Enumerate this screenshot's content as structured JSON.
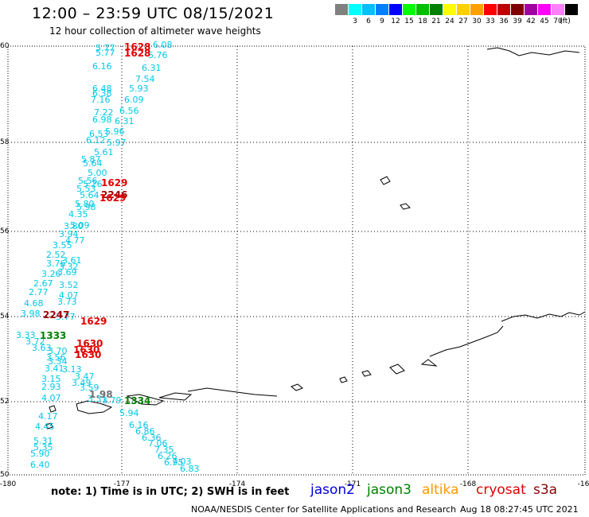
{
  "header": {
    "title": "12:00 – 23:59 UTC 08/15/2021",
    "subtitle": "12 hour collection of altimeter wave heights"
  },
  "legend": {
    "unit_label": "(ft)",
    "items": [
      {
        "color": "#808080",
        "label": ""
      },
      {
        "color": "#00ffff",
        "label": "3"
      },
      {
        "color": "#00c0ff",
        "label": "6"
      },
      {
        "color": "#0080ff",
        "label": "9"
      },
      {
        "color": "#0000ff",
        "label": "12"
      },
      {
        "color": "#00ff00",
        "label": "15"
      },
      {
        "color": "#00c000",
        "label": "18"
      },
      {
        "color": "#008000",
        "label": "21"
      },
      {
        "color": "#ffff00",
        "label": "24"
      },
      {
        "color": "#ffd000",
        "label": "27"
      },
      {
        "color": "#ffa000",
        "label": "30"
      },
      {
        "color": "#ff0000",
        "label": "33"
      },
      {
        "color": "#c00000",
        "label": "36"
      },
      {
        "color": "#800000",
        "label": "39"
      },
      {
        "color": "#a000a0",
        "label": "42"
      },
      {
        "color": "#ff00ff",
        "label": "45"
      },
      {
        "color": "#ff80ff",
        "label": "70"
      },
      {
        "color": "#000000",
        "label": ""
      }
    ]
  },
  "map": {
    "lat_labels": [
      "60",
      "58",
      "56",
      "54",
      "52",
      "50"
    ],
    "lon_labels": [
      "-180",
      "-177",
      "-174",
      "-171",
      "-168",
      "-16"
    ],
    "colors": {
      "cyan": "#00c8e6",
      "red": "#e00000",
      "darkred": "#a00000",
      "green": "#008000",
      "gray": "#707070",
      "black": "#000000"
    },
    "tracks": [
      {
        "color": "#00c8e6",
        "values": [
          "5.77",
          "5.77",
          "6.16",
          "6.48",
          "6.38",
          "7.16",
          "7.22",
          "6.98",
          "6.53",
          "6.12",
          "5.61",
          "5.87",
          "5.64",
          "5.00",
          "5.56",
          "5.26",
          "5.53",
          "5.64",
          "5.80",
          "5.98",
          "4.35",
          "3.80",
          "3.94",
          "3.55",
          "3.76",
          "3.26",
          "2.52",
          "2.67",
          "2.77",
          "4.68",
          "3.98"
        ]
      },
      {
        "color": "#00c8e6",
        "values": [
          "6.08",
          "5.76",
          "6.31",
          "7.54",
          "5.93",
          "6.09",
          "6.56",
          "6.31",
          "5.96",
          "5.97",
          "5.09",
          "4.77",
          "3.61",
          "3.32",
          "3.69",
          "3.52",
          "4.07",
          "3.73"
        ]
      },
      {
        "color": "#00c8e6",
        "values": [
          "3.33",
          "3.72",
          "3.63",
          "3.70",
          "3.56",
          "3.34",
          "3.41",
          "3.15",
          "2.93",
          "3.47",
          "3.49",
          "3.13",
          "3.59",
          "3.79",
          "3.31",
          "4.07"
        ]
      },
      {
        "color": "#00c8e6",
        "values": [
          "4.17",
          "4.45",
          "5.31",
          "5.35",
          "5.90",
          "6.40"
        ]
      },
      {
        "color": "#00c8e6",
        "values": [
          "5.94",
          "6.16",
          "6.86",
          "6.36",
          "7.06",
          "7.35",
          "6.26",
          "6.95",
          "7.03",
          "6.83"
        ]
      },
      {
        "color": "#00c8e6",
        "values": [
          "3.77"
        ]
      }
    ],
    "time_labels": [
      {
        "text": "1628",
        "color": "#e00000"
      },
      {
        "text": "1628",
        "color": "#e00000"
      },
      {
        "text": "1629",
        "color": "#e00000"
      },
      {
        "text": "2246",
        "color": "#a00000"
      },
      {
        "text": "1629",
        "color": "#e00000"
      },
      {
        "text": "2247",
        "color": "#a00000"
      },
      {
        "text": "1629",
        "color": "#e00000"
      },
      {
        "text": "1333",
        "color": "#008000"
      },
      {
        "text": "1630",
        "color": "#e00000"
      },
      {
        "text": "1630",
        "color": "#e00000"
      },
      {
        "text": "1630",
        "color": "#e00000"
      },
      {
        "text": "1334",
        "color": "#008000"
      },
      {
        "text": "1.98",
        "color": "#707070"
      }
    ]
  },
  "footer": {
    "note": "note: 1) Time is in UTC; 2) SWH is in feet",
    "satellites": [
      {
        "name": "jason2",
        "color": "#0000e0"
      },
      {
        "name": "jason3",
        "color": "#008000"
      },
      {
        "name": "altika",
        "color": "#ff9900"
      },
      {
        "name": "cryosat",
        "color": "#e00000"
      },
      {
        "name": "s3a",
        "color": "#8b0000"
      }
    ],
    "credit": "NOAA/NESDIS Center for Satellite Applications and Research",
    "timestamp": "Aug 18 08:27:45 UTC 2021"
  }
}
